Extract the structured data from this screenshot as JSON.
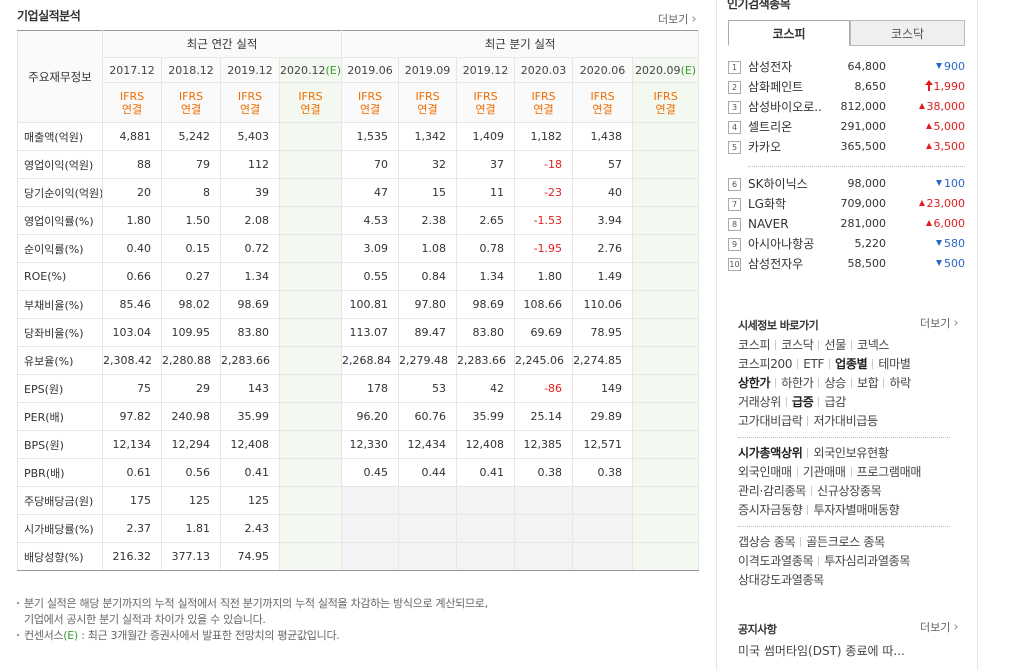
{
  "section": {
    "title": "기업실적분석",
    "more": "더보기"
  },
  "table": {
    "corner": "주요재무정보",
    "periods": [
      {
        "group": "최근 연간 실적",
        "columns": [
          {
            "date": "2017.12",
            "basis": [
              "IFRS",
              "연결"
            ]
          },
          {
            "date": "2018.12",
            "basis": [
              "IFRS",
              "연결"
            ]
          },
          {
            "date": "2019.12",
            "basis": [
              "IFRS",
              "연결"
            ]
          },
          {
            "date": "2020.12",
            "estimate": "(E)",
            "basis": [
              "IFRS",
              "연결"
            ]
          }
        ]
      },
      {
        "group": "최근 분기 실적",
        "columns": [
          {
            "date": "2019.06",
            "basis": [
              "IFRS",
              "연결"
            ]
          },
          {
            "date": "2019.09",
            "basis": [
              "IFRS",
              "연결"
            ]
          },
          {
            "date": "2019.12",
            "basis": [
              "IFRS",
              "연결"
            ]
          },
          {
            "date": "2020.03",
            "basis": [
              "IFRS",
              "연결"
            ]
          },
          {
            "date": "2020.06",
            "basis": [
              "IFRS",
              "연결"
            ]
          },
          {
            "date": "2020.09",
            "estimate": "(E)",
            "basis": [
              "IFRS",
              "연결"
            ]
          }
        ]
      }
    ],
    "row_groups": [
      {
        "rows": [
          {
            "label": "매출액(억원)",
            "cells": [
              "4,881",
              "5,242",
              "5,403",
              null,
              "1,535",
              "1,342",
              "1,409",
              "1,182",
              "1,438",
              null
            ]
          },
          {
            "label": "영업이익(억원)",
            "cells": [
              "88",
              "79",
              "112",
              null,
              "70",
              "32",
              "37",
              "-18",
              "57",
              null
            ]
          },
          {
            "label": "당기순이익(억원)",
            "cells": [
              "20",
              "8",
              "39",
              null,
              "47",
              "15",
              "11",
              "-23",
              "40",
              null
            ]
          }
        ]
      },
      {
        "rows": [
          {
            "label": "영업이익률(%)",
            "cells": [
              "1.80",
              "1.50",
              "2.08",
              null,
              "4.53",
              "2.38",
              "2.65",
              "-1.53",
              "3.94",
              null
            ]
          },
          {
            "label": "순이익률(%)",
            "cells": [
              "0.40",
              "0.15",
              "0.72",
              null,
              "3.09",
              "1.08",
              "0.78",
              "-1.95",
              "2.76",
              null
            ]
          },
          {
            "label": "ROE(%)",
            "cells": [
              "0.66",
              "0.27",
              "1.34",
              null,
              "0.55",
              "0.84",
              "1.34",
              "1.80",
              "1.49",
              null
            ]
          }
        ]
      },
      {
        "rows": [
          {
            "label": "부채비율(%)",
            "cells": [
              "85.46",
              "98.02",
              "98.69",
              null,
              "100.81",
              "97.80",
              "98.69",
              "108.66",
              "110.06",
              null
            ]
          },
          {
            "label": "당좌비율(%)",
            "cells": [
              "103.04",
              "109.95",
              "83.80",
              null,
              "113.07",
              "89.47",
              "83.80",
              "69.69",
              "78.95",
              null
            ]
          },
          {
            "label": "유보율(%)",
            "cells": [
              "2,308.42",
              "2,280.88",
              "2,283.66",
              null,
              "2,268.84",
              "2,279.48",
              "2,283.66",
              "2,245.06",
              "2,274.85",
              null
            ]
          }
        ]
      },
      {
        "rows": [
          {
            "label": "EPS(원)",
            "cells": [
              "75",
              "29",
              "143",
              null,
              "178",
              "53",
              "42",
              "-86",
              "149",
              null
            ]
          },
          {
            "label": "PER(배)",
            "cells": [
              "97.82",
              "240.98",
              "35.99",
              null,
              "96.20",
              "60.76",
              "35.99",
              "25.14",
              "29.89",
              null
            ]
          },
          {
            "label": "BPS(원)",
            "cells": [
              "12,134",
              "12,294",
              "12,408",
              null,
              "12,330",
              "12,434",
              "12,408",
              "12,385",
              "12,571",
              null
            ]
          },
          {
            "label": "PBR(배)",
            "cells": [
              "0.61",
              "0.56",
              "0.41",
              null,
              "0.45",
              "0.44",
              "0.41",
              "0.38",
              "0.38",
              null
            ]
          }
        ]
      },
      {
        "rows": [
          {
            "label": "주당배당금(원)",
            "cells": [
              "175",
              "125",
              "125",
              null,
              null,
              null,
              null,
              null,
              null,
              null
            ]
          },
          {
            "label": "시가배당률(%)",
            "cells": [
              "2.37",
              "1.81",
              "2.43",
              null,
              null,
              null,
              null,
              null,
              null,
              null
            ]
          },
          {
            "label": "배당성향(%)",
            "cells": [
              "216.32",
              "377.13",
              "74.95",
              null,
              null,
              null,
              null,
              null,
              null,
              null
            ]
          }
        ]
      }
    ]
  },
  "notes": [
    {
      "lines": [
        "분기 실적은 해당 분기까지의 누적 실적에서 직전 분기까지의 누적 실적을 차감하는 방식으로 계산되므로,",
        "기업에서 공시한 분기 실적과 차이가 있을 수 있습니다."
      ]
    },
    {
      "prefix": "컨센서스",
      "highlight": "(E)",
      "suffix": " : 최근 3개월간 증권사에서 발표한 전망치의 평균값입니다."
    }
  ],
  "popular": {
    "title": "인기검색종목",
    "tabs": [
      {
        "label": "코스피",
        "active": true
      },
      {
        "label": "코스닥",
        "active": false
      }
    ],
    "groups": [
      [
        {
          "rank": 1,
          "name": "삼성전자",
          "price": "64,800",
          "change": "900",
          "dir": "down"
        },
        {
          "rank": 2,
          "name": "삼화페인트",
          "price": "8,650",
          "change": "1,990",
          "dir": "upper"
        },
        {
          "rank": 3,
          "name": "삼성바이오로..",
          "price": "812,000",
          "change": "38,000",
          "dir": "up"
        },
        {
          "rank": 4,
          "name": "셀트리온",
          "price": "291,000",
          "change": "5,000",
          "dir": "up"
        },
        {
          "rank": 5,
          "name": "카카오",
          "price": "365,500",
          "change": "3,500",
          "dir": "up"
        }
      ],
      [
        {
          "rank": 6,
          "name": "SK하이닉스",
          "price": "98,000",
          "change": "100",
          "dir": "down"
        },
        {
          "rank": 7,
          "name": "LG화학",
          "price": "709,000",
          "change": "23,000",
          "dir": "up"
        },
        {
          "rank": 8,
          "name": "NAVER",
          "price": "281,000",
          "change": "6,000",
          "dir": "up"
        },
        {
          "rank": 9,
          "name": "아시아나항공",
          "price": "5,220",
          "change": "580",
          "dir": "down"
        },
        {
          "rank": 10,
          "name": "삼성전자우",
          "price": "58,500",
          "change": "500",
          "dir": "down"
        }
      ]
    ]
  },
  "quick": {
    "title": "시세정보 바로가기",
    "more": "더보기",
    "groups": [
      [
        [
          {
            "text": "코스피"
          },
          {
            "text": "코스닥"
          },
          {
            "text": "선물"
          },
          {
            "text": "코넥스"
          }
        ],
        [
          {
            "text": "코스피200"
          },
          {
            "text": "ETF"
          },
          {
            "text": "업종별",
            "bold": true
          },
          {
            "text": "테마별"
          }
        ],
        [
          {
            "text": "상한가",
            "bold": true
          },
          {
            "text": "하한가"
          },
          {
            "text": "상승"
          },
          {
            "text": "보합"
          },
          {
            "text": "하락"
          }
        ],
        [
          {
            "text": "거래상위"
          },
          {
            "text": "급증",
            "bold": true
          },
          {
            "text": "급감"
          }
        ],
        [
          {
            "text": "고가대비급락"
          },
          {
            "text": "저가대비급등"
          }
        ]
      ],
      [
        [
          {
            "text": "시가총액상위",
            "bold": true
          },
          {
            "text": "외국인보유현황"
          }
        ],
        [
          {
            "text": "외국인매매"
          },
          {
            "text": "기관매매"
          },
          {
            "text": "프로그램매매"
          }
        ],
        [
          {
            "text": "관리·감리종목"
          },
          {
            "text": "신규상장종목"
          }
        ],
        [
          {
            "text": "증시자금동향"
          },
          {
            "text": "투자자별매매동향"
          }
        ]
      ],
      [
        [
          {
            "text": "갭상승 종목"
          },
          {
            "text": "골든크로스 종목"
          }
        ],
        [
          {
            "text": "이격도과열종목"
          },
          {
            "text": "투자심리과열종목"
          }
        ],
        [
          {
            "text": "상대강도과열종목"
          }
        ]
      ]
    ]
  },
  "notice": {
    "title": "공지사항",
    "more": "더보기",
    "items": [
      "미국 썸머타임(DST) 종료에 따..."
    ]
  }
}
